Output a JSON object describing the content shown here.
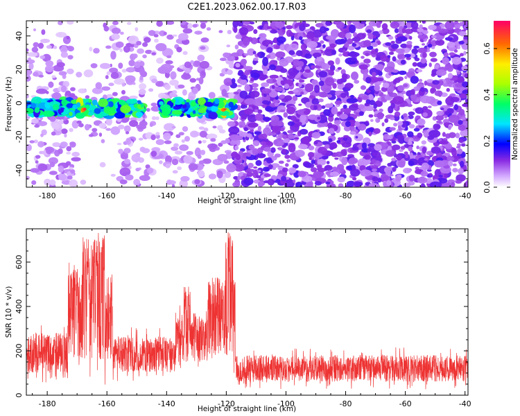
{
  "figure": {
    "title": "C2E1.2023.062.00.17.R03"
  },
  "chart_data": [
    {
      "type": "heatmap",
      "title": "C2E1.2023.062.00.17.R03",
      "xlabel": "Height of straight line (km)",
      "ylabel": "Frequency (Hz)",
      "xlim": [
        -187,
        -39
      ],
      "ylim": [
        -50,
        49
      ],
      "x_ticks": [
        -180,
        -160,
        -140,
        -120,
        -100,
        -80,
        -60,
        -40
      ],
      "y_ticks": [
        -40,
        -20,
        0,
        20,
        40
      ],
      "colorbar": {
        "label": "Normalized spectral amplitude",
        "range": [
          0.0,
          0.72
        ],
        "ticks": [
          0.0,
          0.2,
          0.4,
          0.6
        ]
      },
      "features": {
        "weak_signal_region_x": [
          -187,
          -118
        ],
        "strong_band_center_hz": -4,
        "strong_band_halfwidth_hz": 5,
        "strong_band_segments_x": [
          [
            -187,
            -157
          ],
          [
            -156,
            -148
          ],
          [
            -142,
            -127
          ],
          [
            -126,
            -118
          ]
        ],
        "gap_region_x": [
          -127,
          -118
        ],
        "peak_x": [
          -168,
          -121
        ]
      }
    },
    {
      "type": "line",
      "xlabel": "Height of straight line (km)",
      "ylabel": "SNR (10 * v/v)",
      "xlim": [
        -187,
        -39
      ],
      "ylim": [
        0,
        750
      ],
      "x_ticks": [
        -180,
        -160,
        -140,
        -120,
        -100,
        -80,
        -60,
        -40
      ],
      "y_ticks": [
        0,
        200,
        400,
        600
      ],
      "color": "#ee3333",
      "baseline_segments": [
        {
          "x": [
            -187,
            -173
          ],
          "mean": 190,
          "spread": 90
        },
        {
          "x": [
            -173,
            -158
          ],
          "mean": 360,
          "spread": 200
        },
        {
          "x": [
            -158,
            -137
          ],
          "mean": 185,
          "spread": 80
        },
        {
          "x": [
            -137,
            -126
          ],
          "mean": 260,
          "spread": 110
        },
        {
          "x": [
            -126,
            -117
          ],
          "mean": 360,
          "spread": 180
        },
        {
          "x": [
            -117,
            -39
          ],
          "mean": 120,
          "spread": 60
        }
      ],
      "peaks": [
        {
          "x": -171,
          "y": 590
        },
        {
          "x": -167,
          "y": 715
        },
        {
          "x": -164,
          "y": 705
        },
        {
          "x": -162,
          "y": 750
        },
        {
          "x": -133,
          "y": 505
        },
        {
          "x": -119,
          "y": 740
        }
      ]
    }
  ]
}
